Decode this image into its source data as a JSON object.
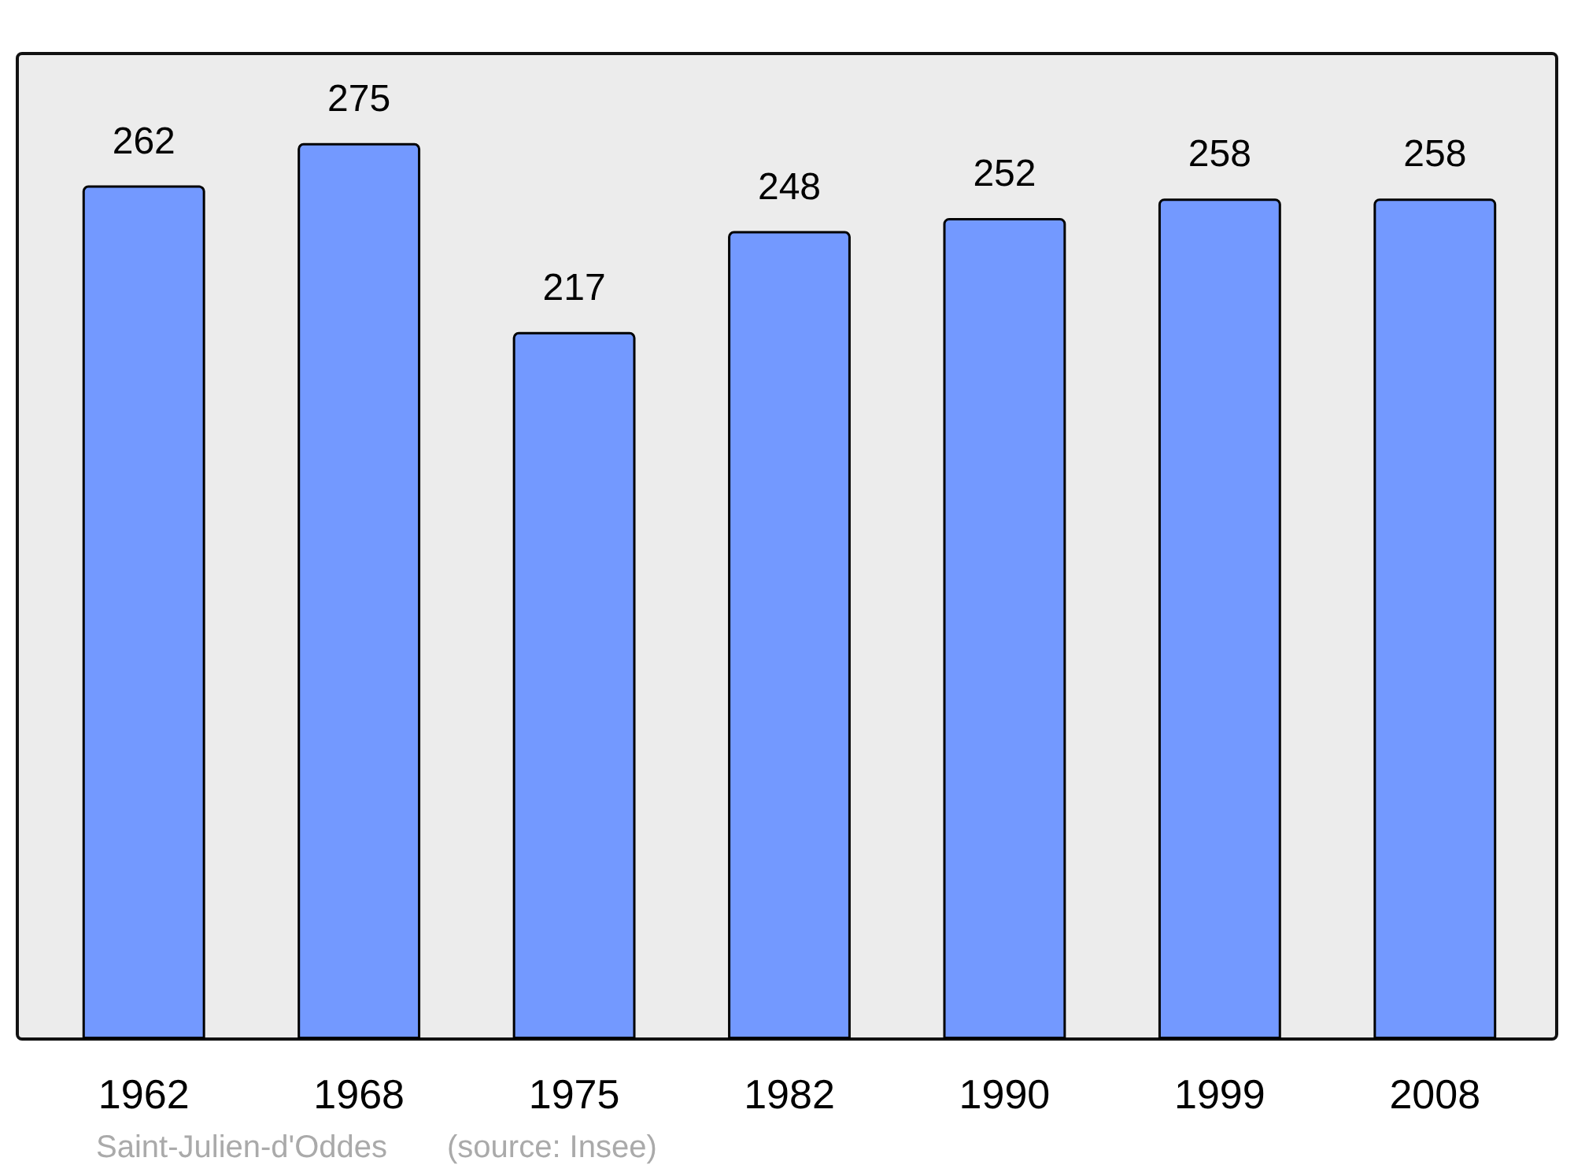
{
  "chart_data": {
    "type": "bar",
    "title": "Saint-Julien-d'Oddes",
    "categories": [
      "1962",
      "1968",
      "1975",
      "1982",
      "1990",
      "1999",
      "2008"
    ],
    "values": [
      262,
      275,
      217,
      248,
      252,
      258,
      258
    ],
    "color": "#7399ff",
    "data_labels": true,
    "annotations": [
      "(source: Insee)"
    ]
  }
}
